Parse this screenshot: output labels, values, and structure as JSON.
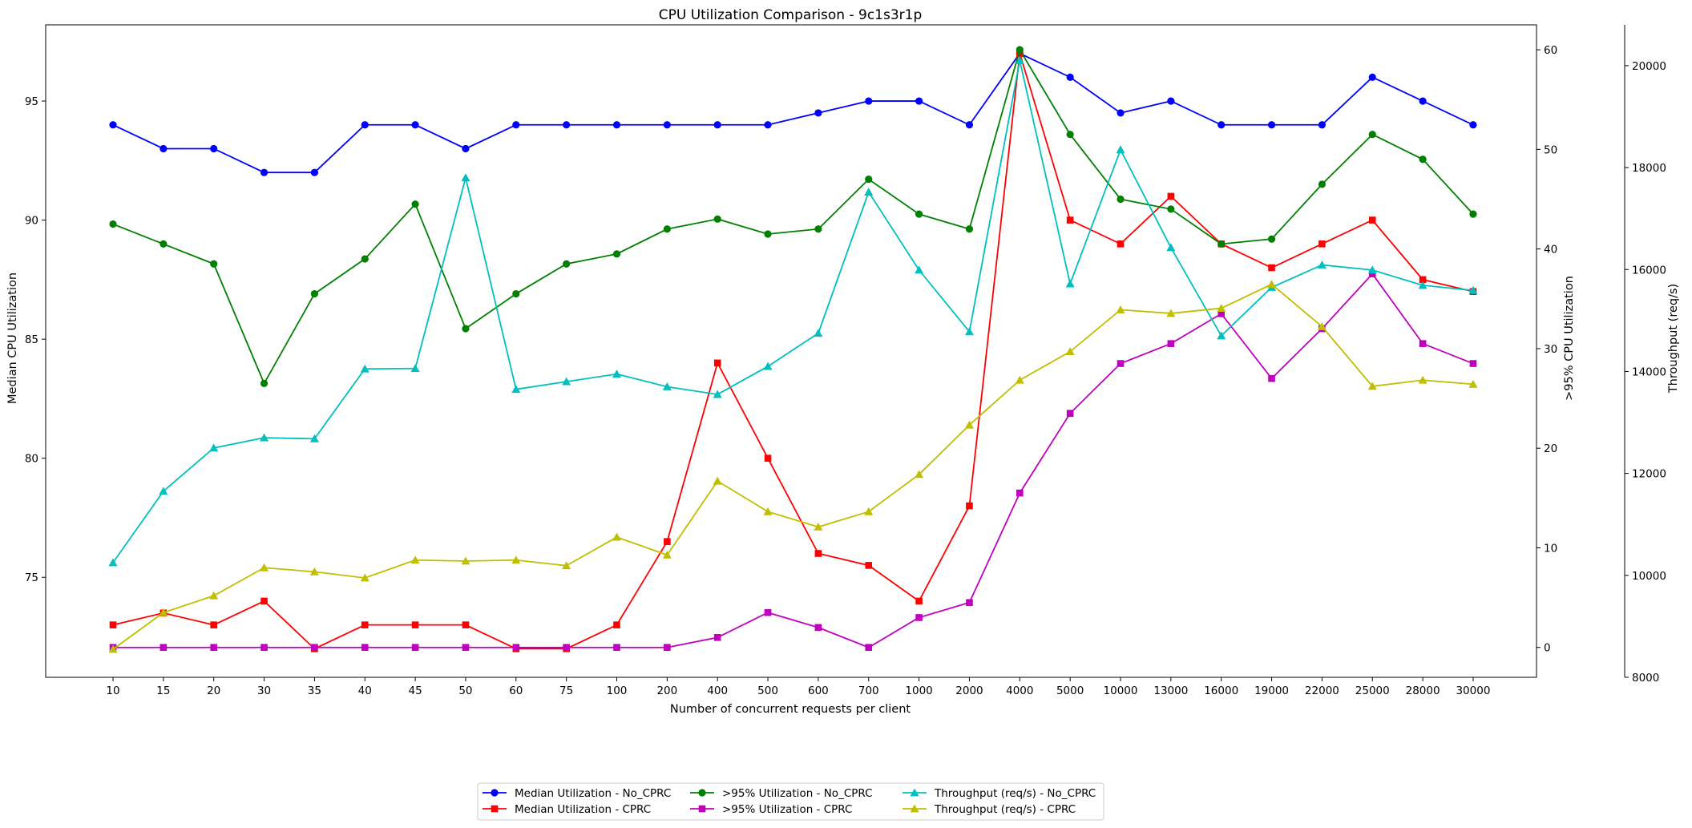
{
  "chart_data": {
    "type": "line",
    "title": "CPU Utilization Comparison - 9c1s3r1p",
    "xlabel": "Number of concurrent requests per client",
    "ylabel_left": "Median CPU Utilization",
    "ylabel_right1": ">95% CPU Utilization",
    "ylabel_right2": "Throughput (req/s)",
    "categories": [
      "10",
      "15",
      "20",
      "30",
      "35",
      "40",
      "45",
      "50",
      "60",
      "75",
      "100",
      "200",
      "400",
      "500",
      "600",
      "700",
      "1000",
      "2000",
      "4000",
      "5000",
      "10000",
      "13000",
      "16000",
      "19000",
      "22000",
      "25000",
      "28000",
      "30000"
    ],
    "axes": {
      "left": {
        "ylim": [
          70.8,
          98.2
        ],
        "ticks": [
          75,
          80,
          85,
          90,
          95
        ]
      },
      "right1": {
        "ylim": [
          -3.0,
          62.5
        ],
        "ticks": [
          0,
          10,
          20,
          30,
          40,
          50,
          60
        ]
      },
      "right2": {
        "ylim": [
          8000,
          20800
        ],
        "ticks": [
          8000,
          10000,
          12000,
          14000,
          16000,
          18000,
          20000
        ]
      }
    },
    "series": [
      {
        "name": "Median Utilization - No_CPRC",
        "axis": "left",
        "color": "#0000ff",
        "marker": "circle",
        "values": [
          94,
          93,
          93,
          92,
          92,
          94,
          94,
          93,
          94,
          94,
          94,
          94,
          94,
          94,
          94.5,
          95,
          95,
          94,
          97,
          96,
          94.5,
          95,
          94,
          94,
          94,
          96,
          95,
          94
        ]
      },
      {
        "name": "Median Utilization - CPRC",
        "axis": "left",
        "color": "#ff0000",
        "marker": "square",
        "values": [
          73,
          73.5,
          73,
          74,
          72,
          73,
          73,
          73,
          72,
          72,
          73,
          76.5,
          84,
          80,
          76,
          75.5,
          74,
          78,
          97,
          90,
          89,
          91,
          89,
          88,
          89,
          90,
          87.5,
          87
        ]
      },
      {
        "name": ">95% Utilization - No_CPRC",
        "axis": "right1",
        "color": "#008000",
        "marker": "circle",
        "values": [
          42.5,
          40.5,
          38.5,
          26.5,
          35.5,
          39,
          44.5,
          32,
          35.5,
          38.5,
          39.5,
          42,
          43,
          41.5,
          42,
          47,
          43.5,
          42,
          60,
          51.5,
          45,
          44,
          40.5,
          41,
          46.5,
          51.5,
          49,
          43.5
        ]
      },
      {
        "name": ">95% Utilization - CPRC",
        "axis": "right1",
        "color": "#bf00bf",
        "marker": "square",
        "values": [
          0,
          0,
          0,
          0,
          0,
          0,
          0,
          0,
          0,
          0,
          0,
          0,
          1,
          3.5,
          2,
          0,
          3,
          4.5,
          15.5,
          23.5,
          28.5,
          30.5,
          33.5,
          27,
          32,
          37.5,
          30.5,
          28.5
        ]
      },
      {
        "name": "Throughput (req/s) - No_CPRC",
        "axis": "right2",
        "color": "#00bfbf",
        "marker": "triangle",
        "values": [
          10250,
          11650,
          12500,
          12700,
          12680,
          14050,
          14060,
          17800,
          13650,
          13800,
          13950,
          13700,
          13550,
          14100,
          14750,
          17520,
          15990,
          14780,
          20100,
          15720,
          18350,
          16430,
          14700,
          15650,
          16090,
          15990,
          15690,
          15590
        ]
      },
      {
        "name": "Throughput (req/s) - CPRC",
        "axis": "right2",
        "color": "#bfbf00",
        "marker": "triangle",
        "values": [
          8550,
          9270,
          9600,
          10150,
          10070,
          9950,
          10300,
          10280,
          10300,
          10190,
          10750,
          10400,
          11850,
          11250,
          10950,
          11250,
          11980,
          12950,
          13830,
          14390,
          15210,
          15140,
          15240,
          15710,
          14880,
          13710,
          13830,
          13750
        ]
      }
    ],
    "legend": {
      "placement": "bottom-center",
      "columns": 3
    }
  }
}
